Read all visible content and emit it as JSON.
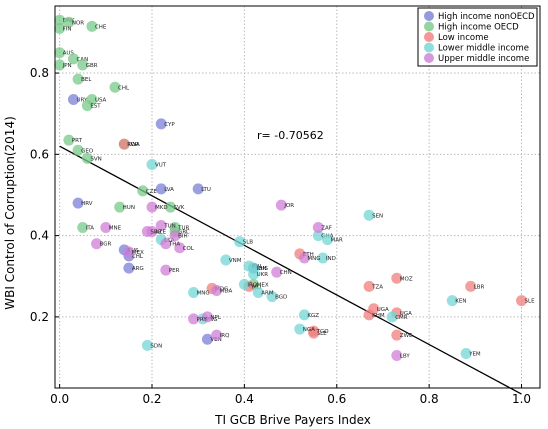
{
  "chart_data": {
    "type": "scatter",
    "xlabel": "TI GCB Brive Payers Index",
    "ylabel": "WBI Control of Corruption(2014)",
    "xlim": [
      -0.01,
      1.04
    ],
    "ylim": [
      0.025,
      0.965
    ],
    "xticks": [
      "0.0",
      "0.2",
      "0.4",
      "0.6",
      "0.8",
      "1.0"
    ],
    "yticks": [
      "0.2",
      "0.4",
      "0.6",
      "0.8"
    ],
    "grid": true,
    "legend_position": "top-right",
    "annotation": "r= -0.70562",
    "fit_line": {
      "x0": 0.0,
      "y0": 0.62,
      "x1": 1.0,
      "y1": 0.01
    },
    "colors": {
      "high_income_nonoecd": "#7b7fd6",
      "high_income_oecd": "#78c98a",
      "low_income": "#f07d7d",
      "lower_middle_income": "#73d6d6",
      "upper_middle_income": "#cf7ed6"
    },
    "series": [
      {
        "name": "High income nonOECD",
        "color": "#7b7fd6",
        "points": [
          [
            "URY",
            0.03,
            0.735
          ],
          [
            "CYP",
            0.22,
            0.675
          ],
          [
            "LTU",
            0.3,
            0.515
          ],
          [
            "LVA",
            0.22,
            0.515
          ],
          [
            "HRV",
            0.04,
            0.48
          ],
          [
            "RUS",
            0.14,
            0.365
          ],
          [
            "CHL",
            0.15,
            0.35
          ],
          [
            "ARG",
            0.15,
            0.32
          ],
          [
            "RUS",
            0.42,
            0.32
          ],
          [
            "VEN",
            0.32,
            0.145
          ]
        ]
      },
      {
        "name": "High income OECD",
        "color": "#78c98a",
        "points": [
          [
            "DNK",
            0.0,
            0.93
          ],
          [
            "NOR",
            0.02,
            0.925
          ],
          [
            "FIN",
            0.0,
            0.91
          ],
          [
            "CHE",
            0.07,
            0.915
          ],
          [
            "AUS",
            0.0,
            0.85
          ],
          [
            "CAN",
            0.03,
            0.835
          ],
          [
            "JPN",
            0.0,
            0.82
          ],
          [
            "GBR",
            0.05,
            0.82
          ],
          [
            "BEL",
            0.04,
            0.785
          ],
          [
            "CHL",
            0.12,
            0.765
          ],
          [
            "USA",
            0.07,
            0.735
          ],
          [
            "EST",
            0.06,
            0.72
          ],
          [
            "PRT",
            0.02,
            0.635
          ],
          [
            "KOR",
            0.14,
            0.625
          ],
          [
            "GEO",
            0.04,
            0.61
          ],
          [
            "SVN",
            0.06,
            0.59
          ],
          [
            "CZE",
            0.18,
            0.51
          ],
          [
            "HUN",
            0.13,
            0.47
          ],
          [
            "SVK",
            0.24,
            0.47
          ],
          [
            "ITA",
            0.05,
            0.42
          ],
          [
            "GRC",
            0.25,
            0.41
          ],
          [
            "TUR",
            0.25,
            0.42
          ],
          [
            "MEX",
            0.42,
            0.28
          ]
        ]
      },
      {
        "name": "Low income",
        "color": "#f07d7d",
        "points": [
          [
            "RWA",
            0.14,
            0.625
          ],
          [
            "ETH",
            0.52,
            0.355
          ],
          [
            "TZA",
            0.67,
            0.275
          ],
          [
            "MOZ",
            0.73,
            0.295
          ],
          [
            "UGA",
            0.68,
            0.22
          ],
          [
            "KHM",
            0.67,
            0.205
          ],
          [
            "UGA",
            0.73,
            0.21
          ],
          [
            "ZWE",
            0.73,
            0.155
          ],
          [
            "LBR",
            0.89,
            0.275
          ],
          [
            "SLE",
            1.0,
            0.24
          ],
          [
            "SLE",
            0.55,
            0.16
          ],
          [
            "TGO",
            0.55,
            0.165
          ],
          [
            "MDG",
            0.33,
            0.27
          ],
          [
            "MLI",
            0.41,
            0.275
          ]
        ]
      },
      {
        "name": "Lower middle income",
        "color": "#73d6d6",
        "points": [
          [
            "VUT",
            0.2,
            0.575
          ],
          [
            "SEN",
            0.67,
            0.45
          ],
          [
            "GHA",
            0.56,
            0.4
          ],
          [
            "MAR",
            0.58,
            0.39
          ],
          [
            "IND",
            0.57,
            0.345
          ],
          [
            "VNM",
            0.36,
            0.34
          ],
          [
            "PHL",
            0.41,
            0.325
          ],
          [
            "IDN",
            0.42,
            0.32
          ],
          [
            "UKR",
            0.42,
            0.305
          ],
          [
            "BGD",
            0.46,
            0.25
          ],
          [
            "ARM",
            0.43,
            0.26
          ],
          [
            "KGZ",
            0.53,
            0.205
          ],
          [
            "NGA",
            0.52,
            0.17
          ],
          [
            "CMR",
            0.72,
            0.2
          ],
          [
            "KEN",
            0.85,
            0.24
          ],
          [
            "YEM",
            0.88,
            0.11
          ],
          [
            "SDN",
            0.19,
            0.13
          ],
          [
            "PNG",
            0.31,
            0.195
          ],
          [
            "IRQ",
            0.4,
            0.28
          ],
          [
            "SLB",
            0.39,
            0.385
          ],
          [
            "LKA",
            0.22,
            0.39
          ],
          [
            "MNG",
            0.29,
            0.26
          ]
        ]
      },
      {
        "name": "Upper middle income",
        "color": "#cf7ed6",
        "points": [
          [
            "JOR",
            0.48,
            0.475
          ],
          [
            "ZAF",
            0.56,
            0.42
          ],
          [
            "MNG",
            0.53,
            0.345
          ],
          [
            "CHN",
            0.47,
            0.31
          ],
          [
            "MKD",
            0.2,
            0.47
          ],
          [
            "TUN",
            0.22,
            0.425
          ],
          [
            "MNE",
            0.1,
            0.42
          ],
          [
            "BIH",
            0.25,
            0.4
          ],
          [
            "BGR",
            0.08,
            0.38
          ],
          [
            "COL",
            0.26,
            0.37
          ],
          [
            "PER",
            0.23,
            0.315
          ],
          [
            "MEX",
            0.15,
            0.36
          ],
          [
            "IRQ",
            0.34,
            0.155
          ],
          [
            "LBY",
            0.73,
            0.105
          ],
          [
            "NPL",
            0.32,
            0.2
          ],
          [
            "PRY",
            0.29,
            0.195
          ],
          [
            "MDA",
            0.34,
            0.265
          ],
          [
            "AZE",
            0.2,
            0.41
          ],
          [
            "SRB",
            0.19,
            0.41
          ],
          [
            "THA",
            0.23,
            0.38
          ]
        ]
      }
    ]
  }
}
